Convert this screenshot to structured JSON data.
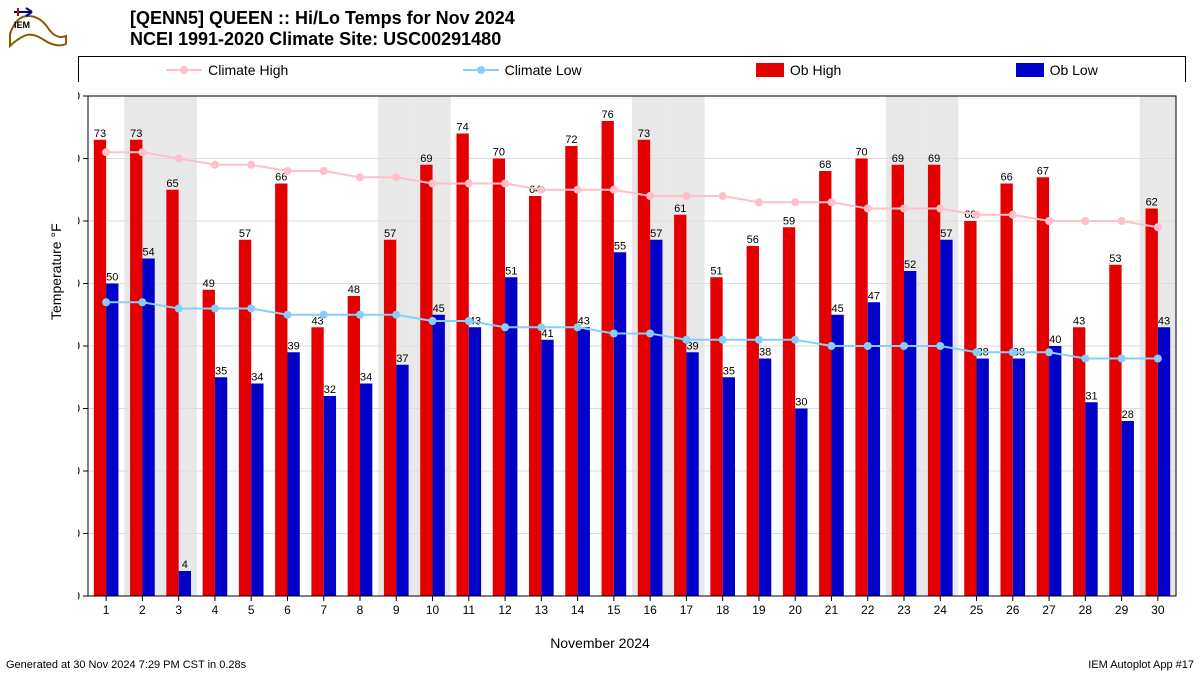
{
  "title_line1": "[QENN5] QUEEN :: Hi/Lo Temps for Nov 2024",
  "title_line2": "NCEI 1991-2020 Climate Site: USC00291480",
  "ylabel": "Temperature °F",
  "xlabel": "November 2024",
  "footer_left": "Generated at 30 Nov 2024 7:29 PM CST in 0.28s",
  "footer_right": "IEM Autoplot App #17",
  "legend": {
    "climate_high": "Climate High",
    "climate_low": "Climate Low",
    "ob_high": "Ob High",
    "ob_low": "Ob Low"
  },
  "chart": {
    "type": "bar_and_line",
    "x_days": [
      1,
      2,
      3,
      4,
      5,
      6,
      7,
      8,
      9,
      10,
      11,
      12,
      13,
      14,
      15,
      16,
      17,
      18,
      19,
      20,
      21,
      22,
      23,
      24,
      25,
      26,
      27,
      28,
      29,
      30
    ],
    "ob_high": [
      73,
      73,
      65,
      49,
      57,
      66,
      43,
      48,
      57,
      69,
      74,
      70,
      64,
      72,
      76,
      73,
      61,
      51,
      56,
      59,
      68,
      70,
      69,
      69,
      60,
      66,
      67,
      43,
      53,
      62
    ],
    "ob_low": [
      50,
      54,
      4,
      35,
      34,
      39,
      32,
      34,
      37,
      45,
      43,
      51,
      41,
      43,
      55,
      57,
      39,
      35,
      38,
      30,
      45,
      47,
      52,
      57,
      38,
      38,
      40,
      31,
      28,
      43
    ],
    "climate_high": [
      71,
      71,
      70,
      69,
      69,
      68,
      68,
      67,
      67,
      66,
      66,
      66,
      65,
      65,
      65,
      64,
      64,
      64,
      63,
      63,
      63,
      62,
      62,
      62,
      61,
      61,
      60,
      60,
      60,
      59
    ],
    "climate_low": [
      47,
      47,
      46,
      46,
      46,
      45,
      45,
      45,
      45,
      44,
      44,
      43,
      43,
      43,
      42,
      42,
      41,
      41,
      41,
      41,
      40,
      40,
      40,
      40,
      39,
      39,
      39,
      38,
      38,
      38
    ],
    "ylim": [
      0,
      80
    ],
    "ytick_step": 10,
    "colors": {
      "ob_high": "#e40000",
      "ob_low": "#0000c8",
      "climate_high": "#ffc0cb",
      "climate_low": "#87cefa",
      "grid": "#dddddd",
      "weekend_band": "#e8e8e8",
      "axis": "#000000",
      "text": "#000000",
      "background": "#ffffff"
    },
    "weekend_days": [
      2,
      3,
      9,
      10,
      16,
      17,
      23,
      24,
      30
    ],
    "bar_group_width": 0.68,
    "label_fontsize": 11,
    "tick_fontsize": 12
  }
}
